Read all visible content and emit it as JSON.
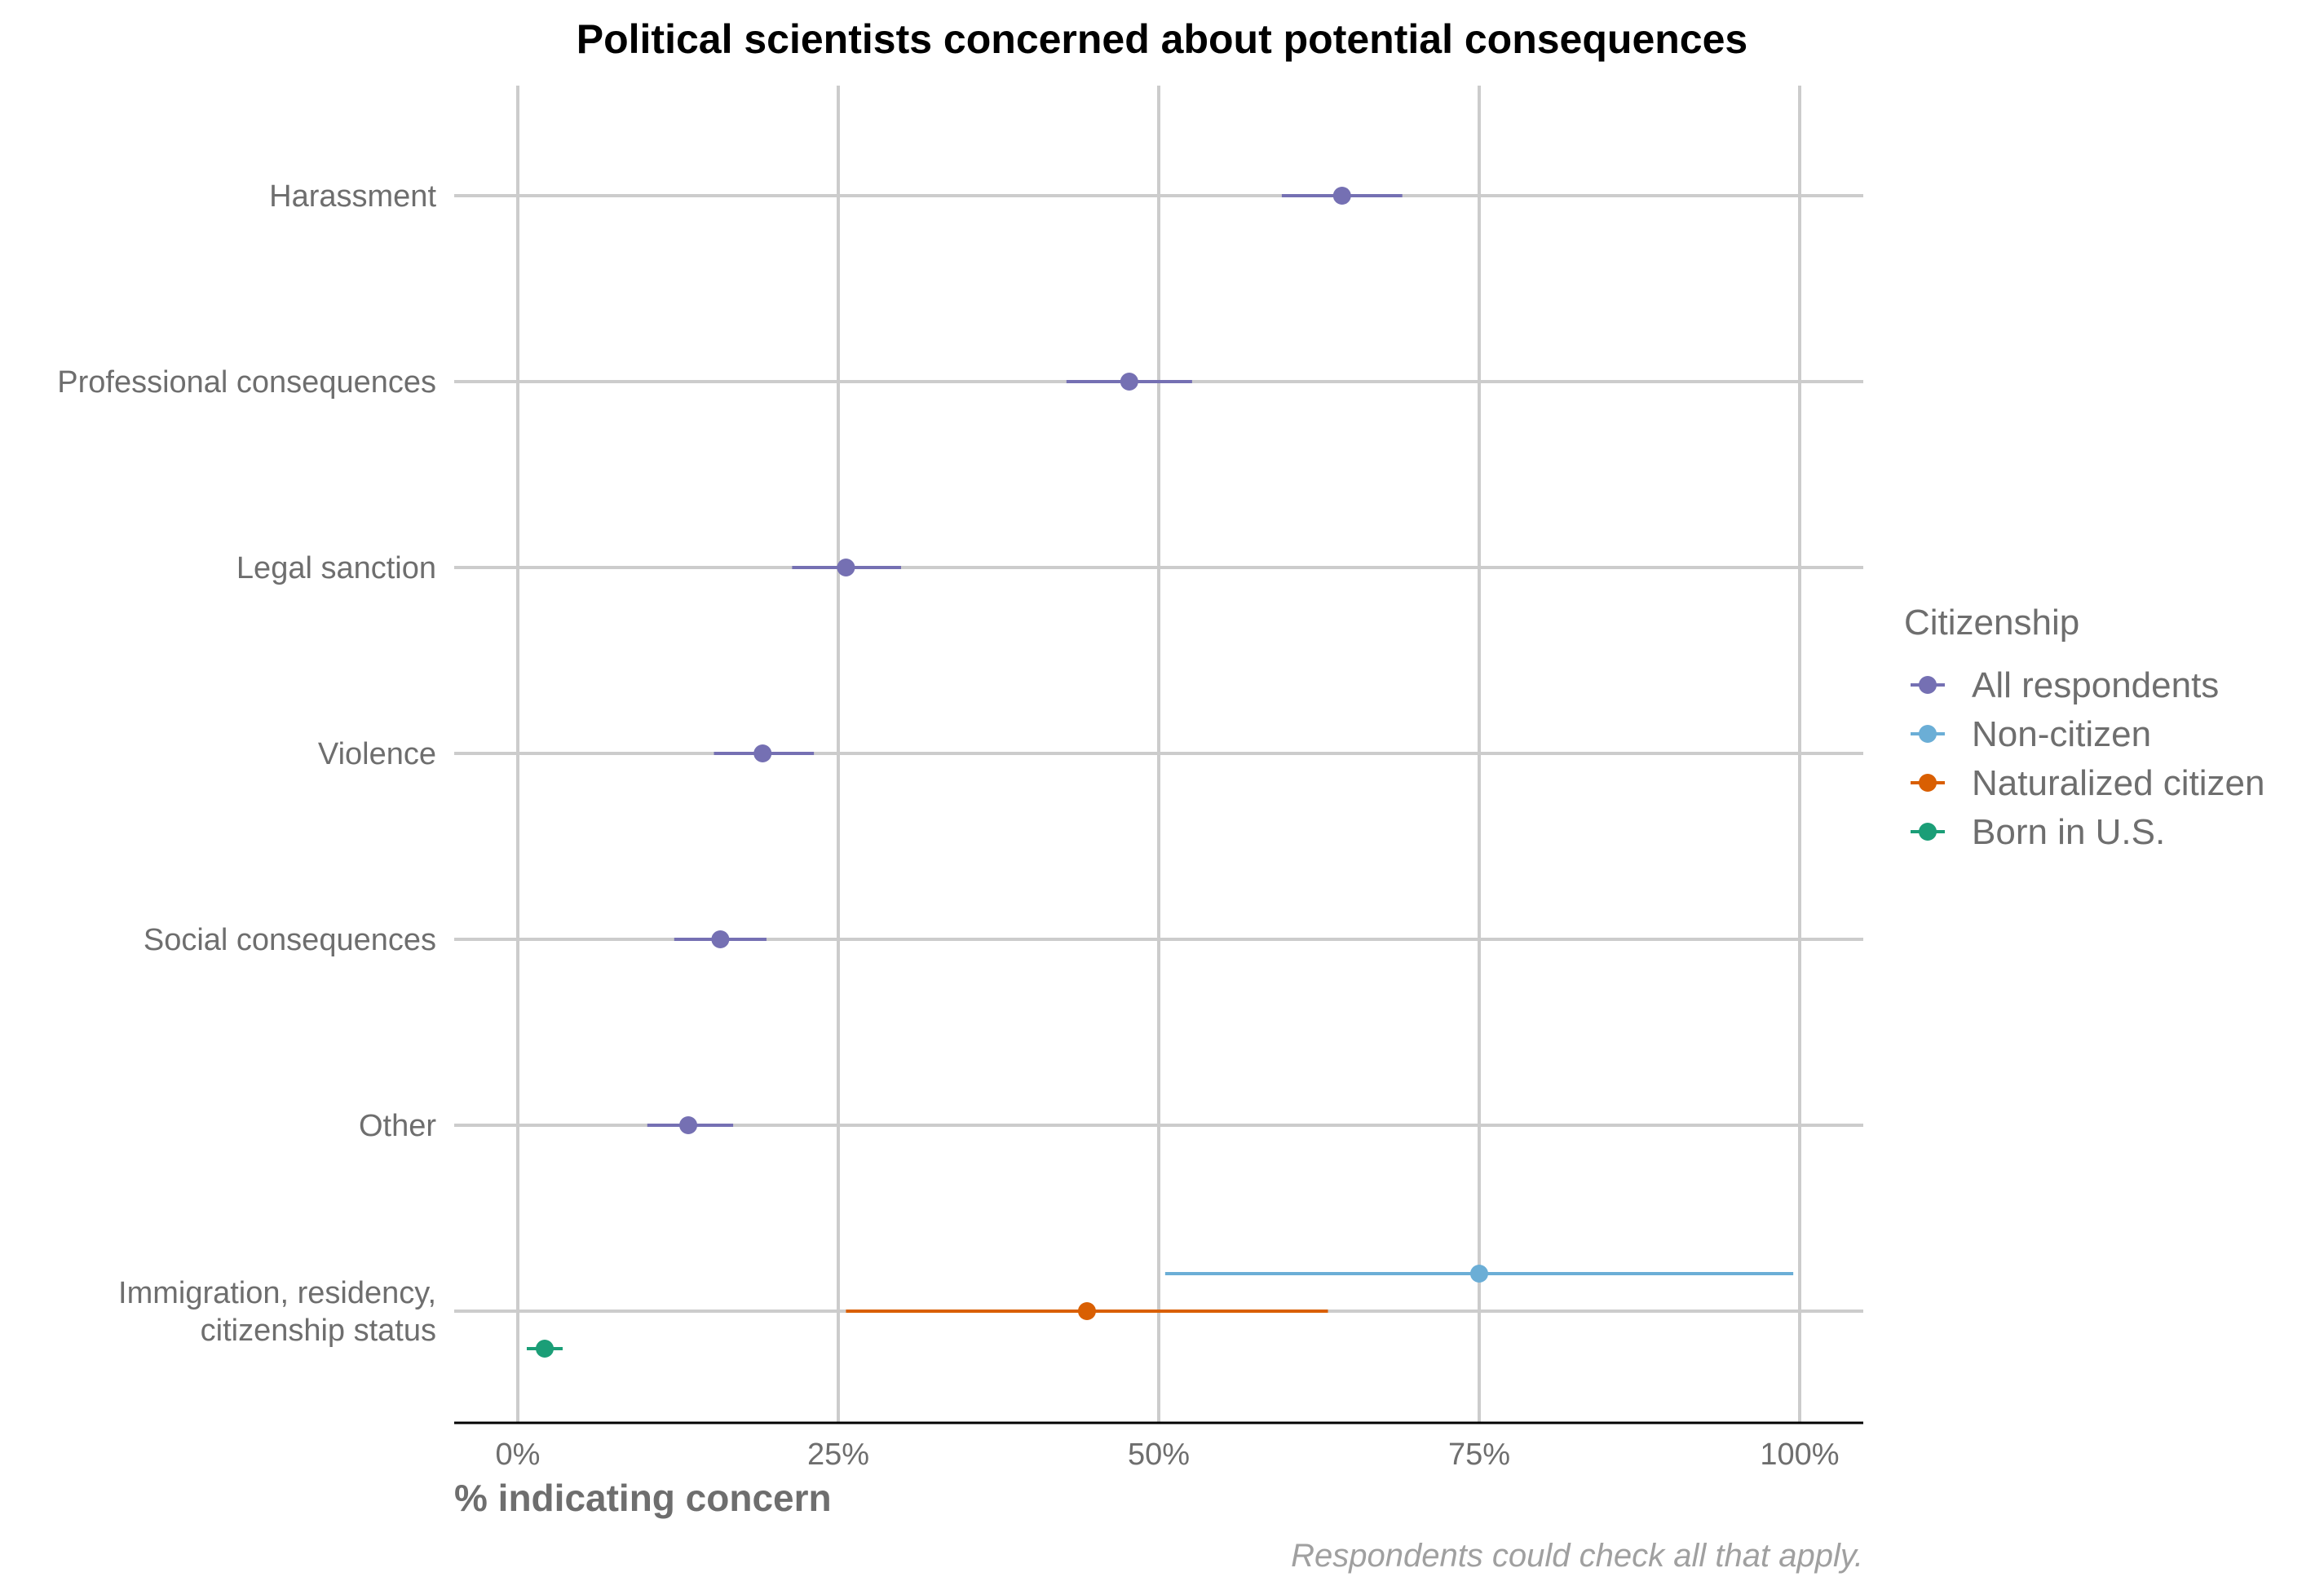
{
  "chart_data": {
    "type": "scatter",
    "title": "Political scientists concerned about potential consequences",
    "xlabel": "% indicating concern",
    "ylabel": "",
    "caption": "Respondents could check all that apply.",
    "xlim": [
      0,
      100
    ],
    "x_ticks": [
      0,
      25,
      50,
      75,
      100
    ],
    "x_tick_labels": [
      "0%",
      "25%",
      "50%",
      "75%",
      "100%"
    ],
    "grid": true,
    "legend_position": "right",
    "legend_title": "Citizenship",
    "categories": [
      "Harassment",
      "Professional consequences",
      "Legal sanction",
      "Violence",
      "Social consequences",
      "Other",
      "Immigration, residency, citizenship status"
    ],
    "category_labels": [
      [
        "Harassment"
      ],
      [
        "Professional consequences"
      ],
      [
        "Legal sanction"
      ],
      [
        "Violence"
      ],
      [
        "Social consequences"
      ],
      [
        "Other"
      ],
      [
        "Immigration, residency,",
        "citizenship status"
      ]
    ],
    "series": [
      {
        "name": "All respondents",
        "color": "#7570b3",
        "points": [
          {
            "category": "Harassment",
            "value": 64.3,
            "low": 59.6,
            "high": 69.0
          },
          {
            "category": "Professional consequences",
            "value": 47.7,
            "low": 42.8,
            "high": 52.6
          },
          {
            "category": "Legal sanction",
            "value": 25.6,
            "low": 21.4,
            "high": 29.9
          },
          {
            "category": "Violence",
            "value": 19.1,
            "low": 15.3,
            "high": 23.1
          },
          {
            "category": "Social consequences",
            "value": 15.8,
            "low": 12.2,
            "high": 19.4
          },
          {
            "category": "Other",
            "value": 13.3,
            "low": 10.1,
            "high": 16.8
          }
        ]
      },
      {
        "name": "Non-citizen",
        "color": "#6baed6",
        "points": [
          {
            "category": "Immigration, residency, citizenship status",
            "value": 75.0,
            "low": 50.5,
            "high": 99.5
          }
        ]
      },
      {
        "name": "Naturalized citizen",
        "color": "#d95f02",
        "points": [
          {
            "category": "Immigration, residency, citizenship status",
            "value": 44.4,
            "low": 25.6,
            "high": 63.2
          }
        ]
      },
      {
        "name": "Born in U.S.",
        "color": "#1b9e77",
        "points": [
          {
            "category": "Immigration, residency, citizenship status",
            "value": 2.1,
            "low": 0.7,
            "high": 3.5
          }
        ]
      }
    ]
  }
}
